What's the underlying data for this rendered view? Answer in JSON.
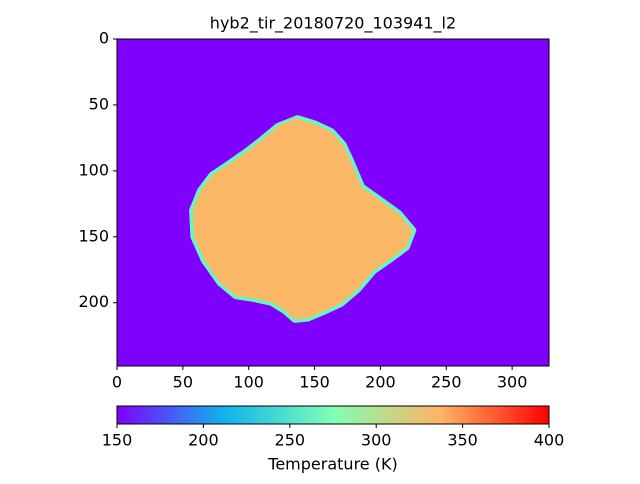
{
  "chart_data": {
    "type": "image",
    "title": "hyb2_tir_20180720_103941_l2",
    "xlim": [
      0,
      328
    ],
    "ylim": [
      248,
      0
    ],
    "xticks": [
      0,
      50,
      100,
      150,
      200,
      250,
      300
    ],
    "yticks": [
      0,
      50,
      100,
      150,
      200
    ],
    "background_value": 150,
    "region": {
      "value": 335,
      "rim_value": 265,
      "x": [
        137,
        150,
        163,
        172,
        178,
        186,
        200,
        214,
        225,
        220,
        208,
        195,
        183,
        170,
        157,
        145,
        135,
        127,
        117,
        103,
        90,
        78,
        66,
        58,
        57,
        63,
        72,
        84,
        97,
        110,
        122
      ],
      "y": [
        60,
        64,
        70,
        80,
        93,
        112,
        122,
        132,
        145,
        158,
        167,
        176,
        190,
        201,
        207,
        212,
        213,
        206,
        200,
        197,
        195,
        185,
        168,
        150,
        130,
        115,
        103,
        95,
        86,
        76,
        66
      ]
    },
    "colorbar": {
      "label": "Temperature (K)",
      "lim": [
        150,
        400
      ],
      "ticks": [
        150,
        200,
        250,
        300,
        350,
        400
      ]
    },
    "colormap": [
      "#8000ff",
      "#0fb4eb",
      "#80ffb4",
      "#ffb462",
      "#ff0000"
    ]
  }
}
